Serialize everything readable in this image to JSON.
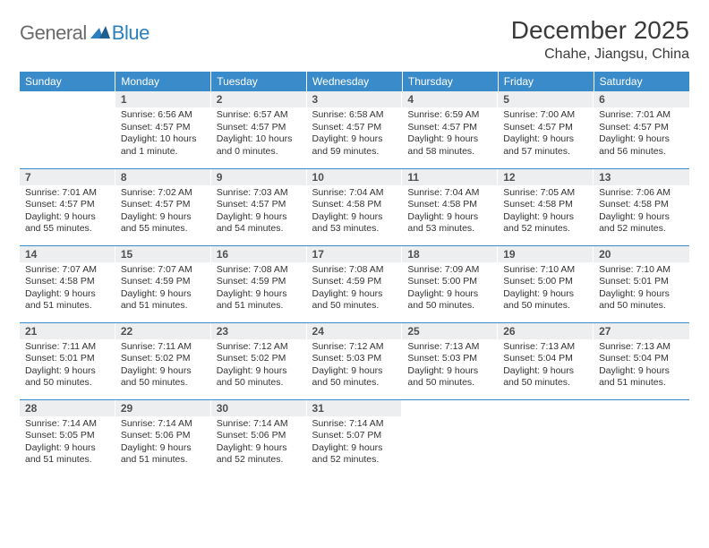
{
  "logo": {
    "general": "General",
    "blue": "Blue",
    "mark_color": "#2a7fbf"
  },
  "title": "December 2025",
  "location": "Chahe, Jiangsu, China",
  "colors": {
    "header_bg": "#3a8bc9",
    "header_text": "#ffffff",
    "daynum_bg": "#eceef0",
    "row_border": "#3a8bc9",
    "body_text": "#333333"
  },
  "day_headers": [
    "Sunday",
    "Monday",
    "Tuesday",
    "Wednesday",
    "Thursday",
    "Friday",
    "Saturday"
  ],
  "weeks": [
    [
      {
        "n": "",
        "sunrise": "",
        "sunset": "",
        "daylight": ""
      },
      {
        "n": "1",
        "sunrise": "Sunrise: 6:56 AM",
        "sunset": "Sunset: 4:57 PM",
        "daylight": "Daylight: 10 hours and 1 minute."
      },
      {
        "n": "2",
        "sunrise": "Sunrise: 6:57 AM",
        "sunset": "Sunset: 4:57 PM",
        "daylight": "Daylight: 10 hours and 0 minutes."
      },
      {
        "n": "3",
        "sunrise": "Sunrise: 6:58 AM",
        "sunset": "Sunset: 4:57 PM",
        "daylight": "Daylight: 9 hours and 59 minutes."
      },
      {
        "n": "4",
        "sunrise": "Sunrise: 6:59 AM",
        "sunset": "Sunset: 4:57 PM",
        "daylight": "Daylight: 9 hours and 58 minutes."
      },
      {
        "n": "5",
        "sunrise": "Sunrise: 7:00 AM",
        "sunset": "Sunset: 4:57 PM",
        "daylight": "Daylight: 9 hours and 57 minutes."
      },
      {
        "n": "6",
        "sunrise": "Sunrise: 7:01 AM",
        "sunset": "Sunset: 4:57 PM",
        "daylight": "Daylight: 9 hours and 56 minutes."
      }
    ],
    [
      {
        "n": "7",
        "sunrise": "Sunrise: 7:01 AM",
        "sunset": "Sunset: 4:57 PM",
        "daylight": "Daylight: 9 hours and 55 minutes."
      },
      {
        "n": "8",
        "sunrise": "Sunrise: 7:02 AM",
        "sunset": "Sunset: 4:57 PM",
        "daylight": "Daylight: 9 hours and 55 minutes."
      },
      {
        "n": "9",
        "sunrise": "Sunrise: 7:03 AM",
        "sunset": "Sunset: 4:57 PM",
        "daylight": "Daylight: 9 hours and 54 minutes."
      },
      {
        "n": "10",
        "sunrise": "Sunrise: 7:04 AM",
        "sunset": "Sunset: 4:58 PM",
        "daylight": "Daylight: 9 hours and 53 minutes."
      },
      {
        "n": "11",
        "sunrise": "Sunrise: 7:04 AM",
        "sunset": "Sunset: 4:58 PM",
        "daylight": "Daylight: 9 hours and 53 minutes."
      },
      {
        "n": "12",
        "sunrise": "Sunrise: 7:05 AM",
        "sunset": "Sunset: 4:58 PM",
        "daylight": "Daylight: 9 hours and 52 minutes."
      },
      {
        "n": "13",
        "sunrise": "Sunrise: 7:06 AM",
        "sunset": "Sunset: 4:58 PM",
        "daylight": "Daylight: 9 hours and 52 minutes."
      }
    ],
    [
      {
        "n": "14",
        "sunrise": "Sunrise: 7:07 AM",
        "sunset": "Sunset: 4:58 PM",
        "daylight": "Daylight: 9 hours and 51 minutes."
      },
      {
        "n": "15",
        "sunrise": "Sunrise: 7:07 AM",
        "sunset": "Sunset: 4:59 PM",
        "daylight": "Daylight: 9 hours and 51 minutes."
      },
      {
        "n": "16",
        "sunrise": "Sunrise: 7:08 AM",
        "sunset": "Sunset: 4:59 PM",
        "daylight": "Daylight: 9 hours and 51 minutes."
      },
      {
        "n": "17",
        "sunrise": "Sunrise: 7:08 AM",
        "sunset": "Sunset: 4:59 PM",
        "daylight": "Daylight: 9 hours and 50 minutes."
      },
      {
        "n": "18",
        "sunrise": "Sunrise: 7:09 AM",
        "sunset": "Sunset: 5:00 PM",
        "daylight": "Daylight: 9 hours and 50 minutes."
      },
      {
        "n": "19",
        "sunrise": "Sunrise: 7:10 AM",
        "sunset": "Sunset: 5:00 PM",
        "daylight": "Daylight: 9 hours and 50 minutes."
      },
      {
        "n": "20",
        "sunrise": "Sunrise: 7:10 AM",
        "sunset": "Sunset: 5:01 PM",
        "daylight": "Daylight: 9 hours and 50 minutes."
      }
    ],
    [
      {
        "n": "21",
        "sunrise": "Sunrise: 7:11 AM",
        "sunset": "Sunset: 5:01 PM",
        "daylight": "Daylight: 9 hours and 50 minutes."
      },
      {
        "n": "22",
        "sunrise": "Sunrise: 7:11 AM",
        "sunset": "Sunset: 5:02 PM",
        "daylight": "Daylight: 9 hours and 50 minutes."
      },
      {
        "n": "23",
        "sunrise": "Sunrise: 7:12 AM",
        "sunset": "Sunset: 5:02 PM",
        "daylight": "Daylight: 9 hours and 50 minutes."
      },
      {
        "n": "24",
        "sunrise": "Sunrise: 7:12 AM",
        "sunset": "Sunset: 5:03 PM",
        "daylight": "Daylight: 9 hours and 50 minutes."
      },
      {
        "n": "25",
        "sunrise": "Sunrise: 7:13 AM",
        "sunset": "Sunset: 5:03 PM",
        "daylight": "Daylight: 9 hours and 50 minutes."
      },
      {
        "n": "26",
        "sunrise": "Sunrise: 7:13 AM",
        "sunset": "Sunset: 5:04 PM",
        "daylight": "Daylight: 9 hours and 50 minutes."
      },
      {
        "n": "27",
        "sunrise": "Sunrise: 7:13 AM",
        "sunset": "Sunset: 5:04 PM",
        "daylight": "Daylight: 9 hours and 51 minutes."
      }
    ],
    [
      {
        "n": "28",
        "sunrise": "Sunrise: 7:14 AM",
        "sunset": "Sunset: 5:05 PM",
        "daylight": "Daylight: 9 hours and 51 minutes."
      },
      {
        "n": "29",
        "sunrise": "Sunrise: 7:14 AM",
        "sunset": "Sunset: 5:06 PM",
        "daylight": "Daylight: 9 hours and 51 minutes."
      },
      {
        "n": "30",
        "sunrise": "Sunrise: 7:14 AM",
        "sunset": "Sunset: 5:06 PM",
        "daylight": "Daylight: 9 hours and 52 minutes."
      },
      {
        "n": "31",
        "sunrise": "Sunrise: 7:14 AM",
        "sunset": "Sunset: 5:07 PM",
        "daylight": "Daylight: 9 hours and 52 minutes."
      },
      {
        "n": "",
        "sunrise": "",
        "sunset": "",
        "daylight": ""
      },
      {
        "n": "",
        "sunrise": "",
        "sunset": "",
        "daylight": ""
      },
      {
        "n": "",
        "sunrise": "",
        "sunset": "",
        "daylight": ""
      }
    ]
  ]
}
